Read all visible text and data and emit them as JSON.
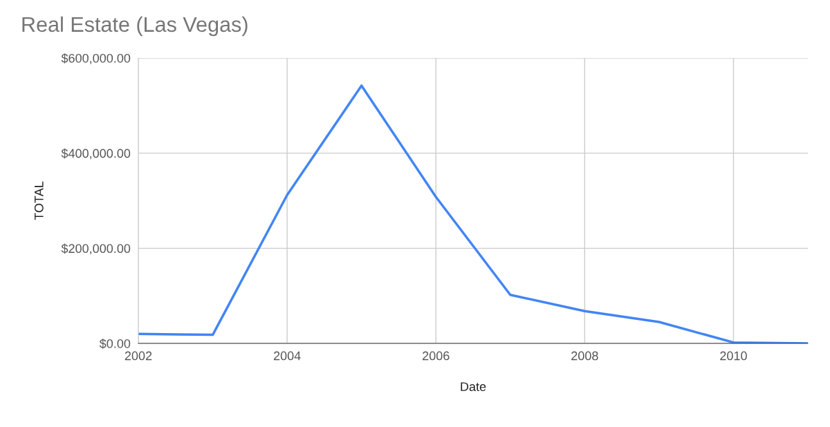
{
  "chart_data": {
    "type": "line",
    "title": "Real Estate (Las Vegas)",
    "xlabel": "Date",
    "ylabel": "TOTAL",
    "x": [
      2002,
      2003,
      2004,
      2005,
      2006,
      2007,
      2008,
      2009,
      2010,
      2011
    ],
    "series": [
      {
        "color": "#4285f4",
        "values": [
          20000,
          18000,
          312000,
          542000,
          308000,
          102000,
          68000,
          45000,
          2000,
          0
        ]
      }
    ],
    "xlim": [
      2002,
      2011
    ],
    "xticks": [
      2002,
      2004,
      2006,
      2008,
      2010
    ],
    "ylim": [
      0,
      600000
    ],
    "yticks": [
      {
        "value": 0,
        "label": "$0.00"
      },
      {
        "value": 200000,
        "label": "$200,000.00"
      },
      {
        "value": 400000,
        "label": "$400,000.00"
      },
      {
        "value": 600000,
        "label": "$600,000.00"
      }
    ],
    "grid": true,
    "marker": "none",
    "line_style": "solid"
  }
}
